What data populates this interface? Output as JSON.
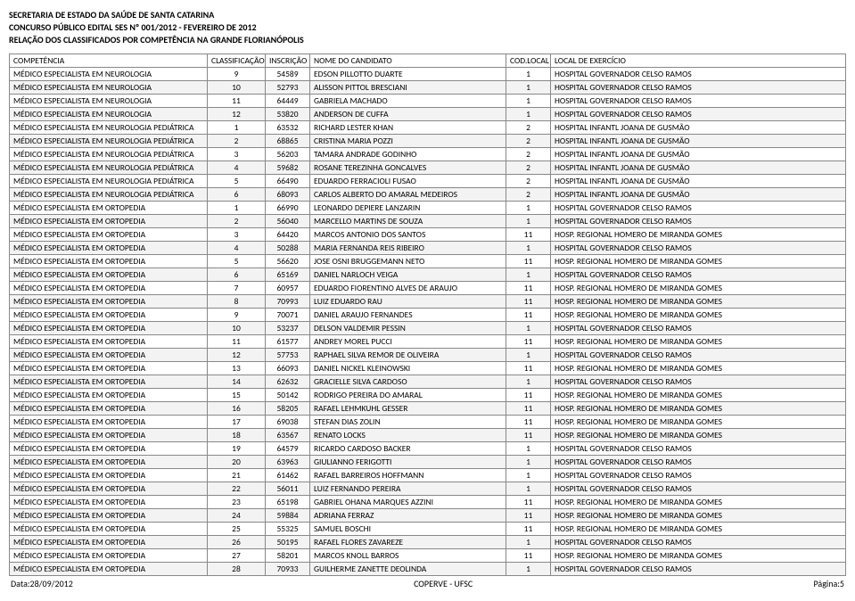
{
  "header": {
    "line1": "SECRETARIA DE ESTADO DA SAÚDE DE SANTA CATARINA",
    "line2": "CONCURSO PÚBLICO EDITAL SES Nº 001/2012 - FEVEREIRO DE 2012",
    "line3": "RELAÇÃO DOS CLASSIFICADOS POR COMPETÊNCIA NA GRANDE FLORIANÓPOLIS"
  },
  "columns": [
    "COMPETÊNCIA",
    "CLASSIFICAÇÃO",
    "INSCRIÇÃO",
    "NOME DO CANDIDATO",
    "COD.LOCAL",
    "LOCAL DE EXERCÍCIO"
  ],
  "rows": [
    [
      "MÉDICO ESPECIALISTA EM NEUROLOGIA",
      "9",
      "54589",
      "EDSON PILLOTTO DUARTE",
      "1",
      "HOSPITAL GOVERNADOR CELSO RAMOS"
    ],
    [
      "MÉDICO ESPECIALISTA EM NEUROLOGIA",
      "10",
      "52793",
      "ALISSON PITTOL BRESCIANI",
      "1",
      "HOSPITAL GOVERNADOR CELSO RAMOS"
    ],
    [
      "MÉDICO ESPECIALISTA EM NEUROLOGIA",
      "11",
      "64449",
      "GABRIELA MACHADO",
      "1",
      "HOSPITAL GOVERNADOR CELSO RAMOS"
    ],
    [
      "MÉDICO ESPECIALISTA EM NEUROLOGIA",
      "12",
      "53820",
      "ANDERSON DE CUFFA",
      "1",
      "HOSPITAL GOVERNADOR CELSO RAMOS"
    ],
    [
      "MÉDICO ESPECIALISTA EM NEUROLOGIA PEDIÁTRICA",
      "1",
      "63532",
      "RICHARD LESTER KHAN",
      "2",
      "HOSPITAL INFANTL JOANA DE GUSMÃO"
    ],
    [
      "MÉDICO ESPECIALISTA EM NEUROLOGIA PEDIÁTRICA",
      "2",
      "68865",
      "CRISTINA MARIA POZZI",
      "2",
      "HOSPITAL INFANTL JOANA DE GUSMÃO"
    ],
    [
      "MÉDICO ESPECIALISTA EM NEUROLOGIA PEDIÁTRICA",
      "3",
      "56203",
      "TAMARA ANDRADE GODINHO",
      "2",
      "HOSPITAL INFANTL JOANA DE GUSMÃO"
    ],
    [
      "MÉDICO ESPECIALISTA EM NEUROLOGIA PEDIÁTRICA",
      "4",
      "59682",
      "ROSANE TEREZINHA GONCALVES",
      "2",
      "HOSPITAL INFANTL JOANA DE GUSMÃO"
    ],
    [
      "MÉDICO ESPECIALISTA EM NEUROLOGIA PEDIÁTRICA",
      "5",
      "66490",
      "EDUARDO FERRACIOLI FUSAO",
      "2",
      "HOSPITAL INFANTL JOANA DE GUSMÃO"
    ],
    [
      "MÉDICO ESPECIALISTA EM NEUROLOGIA PEDIÁTRICA",
      "6",
      "68093",
      "CARLOS ALBERTO DO AMARAL MEDEIROS",
      "2",
      "HOSPITAL INFANTL JOANA DE GUSMÃO"
    ],
    [
      "MÉDICO ESPECIALISTA EM ORTOPEDIA",
      "1",
      "66990",
      "LEONARDO DEPIERE LANZARIN",
      "1",
      "HOSPITAL GOVERNADOR CELSO RAMOS"
    ],
    [
      "MÉDICO ESPECIALISTA EM ORTOPEDIA",
      "2",
      "56040",
      "MARCELLO MARTINS DE SOUZA",
      "1",
      "HOSPITAL GOVERNADOR CELSO RAMOS"
    ],
    [
      "MÉDICO ESPECIALISTA EM ORTOPEDIA",
      "3",
      "64420",
      "MARCOS ANTONIO DOS SANTOS",
      "11",
      "HOSP. REGIONAL HOMERO DE MIRANDA GOMES"
    ],
    [
      "MÉDICO ESPECIALISTA EM ORTOPEDIA",
      "4",
      "50288",
      "MARIA FERNANDA REIS RIBEIRO",
      "1",
      "HOSPITAL GOVERNADOR CELSO RAMOS"
    ],
    [
      "MÉDICO ESPECIALISTA EM ORTOPEDIA",
      "5",
      "56620",
      "JOSE OSNI BRUGGEMANN NETO",
      "11",
      "HOSP. REGIONAL HOMERO DE MIRANDA GOMES"
    ],
    [
      "MÉDICO ESPECIALISTA EM ORTOPEDIA",
      "6",
      "65169",
      "DANIEL NARLOCH VEIGA",
      "1",
      "HOSPITAL GOVERNADOR CELSO RAMOS"
    ],
    [
      "MÉDICO ESPECIALISTA EM ORTOPEDIA",
      "7",
      "60957",
      "EDUARDO FIORENTINO ALVES DE ARAUJO",
      "11",
      "HOSP. REGIONAL HOMERO DE MIRANDA GOMES"
    ],
    [
      "MÉDICO ESPECIALISTA EM ORTOPEDIA",
      "8",
      "70993",
      "LUIZ EDUARDO RAU",
      "11",
      "HOSP. REGIONAL HOMERO DE MIRANDA GOMES"
    ],
    [
      "MÉDICO ESPECIALISTA EM ORTOPEDIA",
      "9",
      "70071",
      "DANIEL ARAUJO FERNANDES",
      "11",
      "HOSP. REGIONAL HOMERO DE MIRANDA GOMES"
    ],
    [
      "MÉDICO ESPECIALISTA EM ORTOPEDIA",
      "10",
      "53237",
      "DELSON VALDEMIR PESSIN",
      "1",
      "HOSPITAL GOVERNADOR CELSO RAMOS"
    ],
    [
      "MÉDICO ESPECIALISTA EM ORTOPEDIA",
      "11",
      "61577",
      "ANDREY MOREL PUCCI",
      "11",
      "HOSP. REGIONAL HOMERO DE MIRANDA GOMES"
    ],
    [
      "MÉDICO ESPECIALISTA EM ORTOPEDIA",
      "12",
      "57753",
      "RAPHAEL SILVA REMOR DE OLIVEIRA",
      "1",
      "HOSPITAL GOVERNADOR CELSO RAMOS"
    ],
    [
      "MÉDICO ESPECIALISTA EM ORTOPEDIA",
      "13",
      "66093",
      "DANIEL NICKEL KLEINOWSKI",
      "11",
      "HOSP. REGIONAL HOMERO DE MIRANDA GOMES"
    ],
    [
      "MÉDICO ESPECIALISTA EM ORTOPEDIA",
      "14",
      "62632",
      "GRACIELLE SILVA CARDOSO",
      "1",
      "HOSPITAL GOVERNADOR CELSO RAMOS"
    ],
    [
      "MÉDICO ESPECIALISTA EM ORTOPEDIA",
      "15",
      "50142",
      "RODRIGO PEREIRA DO AMARAL",
      "11",
      "HOSP. REGIONAL HOMERO DE MIRANDA GOMES"
    ],
    [
      "MÉDICO ESPECIALISTA EM ORTOPEDIA",
      "16",
      "58205",
      "RAFAEL LEHMKUHL GESSER",
      "11",
      "HOSP. REGIONAL HOMERO DE MIRANDA GOMES"
    ],
    [
      "MÉDICO ESPECIALISTA EM ORTOPEDIA",
      "17",
      "69038",
      "STEFAN DIAS ZOLIN",
      "11",
      "HOSP. REGIONAL HOMERO DE MIRANDA GOMES"
    ],
    [
      "MÉDICO ESPECIALISTA EM ORTOPEDIA",
      "18",
      "63567",
      "RENATO LOCKS",
      "11",
      "HOSP. REGIONAL HOMERO DE MIRANDA GOMES"
    ],
    [
      "MÉDICO ESPECIALISTA EM ORTOPEDIA",
      "19",
      "64579",
      "RICARDO CARDOSO BACKER",
      "1",
      "HOSPITAL GOVERNADOR CELSO RAMOS"
    ],
    [
      "MÉDICO ESPECIALISTA EM ORTOPEDIA",
      "20",
      "63963",
      "GIULIANNO FERIGOTTI",
      "1",
      "HOSPITAL GOVERNADOR CELSO RAMOS"
    ],
    [
      "MÉDICO ESPECIALISTA EM ORTOPEDIA",
      "21",
      "61462",
      "RAFAEL BARREIROS HOFFMANN",
      "1",
      "HOSPITAL GOVERNADOR CELSO RAMOS"
    ],
    [
      "MÉDICO ESPECIALISTA EM ORTOPEDIA",
      "22",
      "56011",
      "LUIZ FERNANDO PEREIRA",
      "1",
      "HOSPITAL GOVERNADOR CELSO RAMOS"
    ],
    [
      "MÉDICO ESPECIALISTA EM ORTOPEDIA",
      "23",
      "65198",
      "GABRIEL OHANA MARQUES AZZINI",
      "11",
      "HOSP. REGIONAL HOMERO DE MIRANDA GOMES"
    ],
    [
      "MÉDICO ESPECIALISTA EM ORTOPEDIA",
      "24",
      "59884",
      "ADRIANA FERRAZ",
      "11",
      "HOSP. REGIONAL HOMERO DE MIRANDA GOMES"
    ],
    [
      "MÉDICO ESPECIALISTA EM ORTOPEDIA",
      "25",
      "55325",
      "SAMUEL BOSCHI",
      "11",
      "HOSP. REGIONAL HOMERO DE MIRANDA GOMES"
    ],
    [
      "MÉDICO ESPECIALISTA EM ORTOPEDIA",
      "26",
      "50195",
      "RAFAEL FLORES ZAVAREZE",
      "1",
      "HOSPITAL GOVERNADOR CELSO RAMOS"
    ],
    [
      "MÉDICO ESPECIALISTA EM ORTOPEDIA",
      "27",
      "58201",
      "MARCOS KNOLL BARROS",
      "11",
      "HOSP. REGIONAL HOMERO DE MIRANDA GOMES"
    ],
    [
      "MÉDICO ESPECIALISTA EM ORTOPEDIA",
      "28",
      "70933",
      "GUILHERME ZANETTE DEOLINDA",
      "1",
      "HOSPITAL GOVERNADOR CELSO RAMOS"
    ]
  ],
  "footer": {
    "left": "Data:28/09/2012",
    "center": "COPERVE - UFSC",
    "right": "Página:5"
  }
}
